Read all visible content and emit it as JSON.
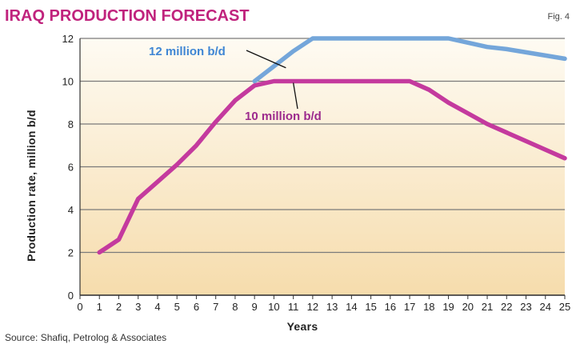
{
  "chart_data": {
    "type": "line",
    "title": "IRAQ PRODUCTION FORECAST",
    "figure_label": "Fig. 4",
    "xlabel": "Years",
    "ylabel": "Production rate, million b/d",
    "source": "Source: Shafiq, Petrolog & Associates",
    "xlim": [
      0,
      25
    ],
    "ylim": [
      0,
      12
    ],
    "x_ticks": [
      0,
      1,
      2,
      3,
      4,
      5,
      6,
      7,
      8,
      9,
      10,
      11,
      12,
      13,
      14,
      15,
      16,
      17,
      18,
      19,
      20,
      21,
      22,
      23,
      24,
      25
    ],
    "y_ticks": [
      0,
      2,
      4,
      6,
      8,
      10,
      12
    ],
    "grid": true,
    "series": [
      {
        "name": "10 million b/d",
        "color": "#c43a9e",
        "x": [
          1,
          2,
          3,
          4,
          5,
          6,
          7,
          8,
          9,
          10,
          11,
          12,
          13,
          14,
          15,
          16,
          17,
          18,
          19,
          20,
          21,
          22,
          23,
          24,
          25
        ],
        "y": [
          2.0,
          2.6,
          4.5,
          5.3,
          6.1,
          7.0,
          8.1,
          9.1,
          9.8,
          10.0,
          10.0,
          10.0,
          10.0,
          10.0,
          10.0,
          10.0,
          10.0,
          9.6,
          9.0,
          8.5,
          8.0,
          7.6,
          7.2,
          6.8,
          6.4
        ]
      },
      {
        "name": "12 million b/d",
        "color": "#74a6da",
        "x": [
          9,
          10,
          11,
          12,
          13,
          14,
          15,
          16,
          17,
          18,
          19,
          20,
          21,
          22,
          23,
          24,
          25
        ],
        "y": [
          10.0,
          10.7,
          11.4,
          12.0,
          12.0,
          12.0,
          12.0,
          12.0,
          12.0,
          12.0,
          12.0,
          11.8,
          11.6,
          11.5,
          11.35,
          11.2,
          11.05
        ]
      }
    ],
    "annotations": [
      {
        "text": "12 million b/d",
        "series": 1,
        "color": "#3f86d4",
        "points_to": [
          10.7,
          10.7
        ]
      },
      {
        "text": "10 million b/d",
        "series": 0,
        "color": "#9c2a8d",
        "points_to": [
          11,
          10.0
        ]
      }
    ],
    "colors": {
      "title": "#c0237d",
      "gradient_top": "#fefbf3",
      "gradient_bottom": "#f6dcac",
      "grid": "#7a7a7a"
    }
  }
}
